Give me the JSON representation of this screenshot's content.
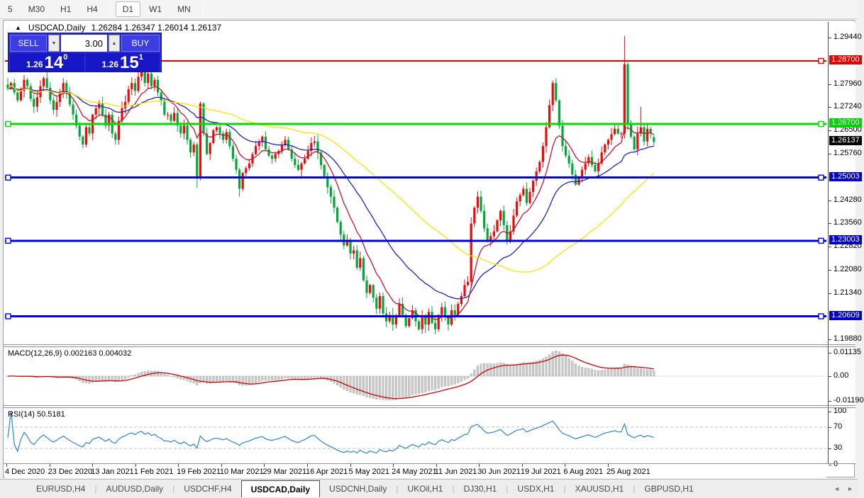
{
  "toolbar": {
    "items": [
      "5",
      "M30",
      "H1",
      "H4",
      "D1",
      "W1",
      "MN"
    ],
    "active": "D1"
  },
  "chart_window": {
    "title": {
      "symbol_period": "USDCAD,Daily",
      "ohlc": "1.26284 1.26347 1.26014 1.26137"
    },
    "trade_panel": {
      "sell_label": "SELL",
      "buy_label": "BUY",
      "volume": "3.00",
      "sell_price": {
        "small": "1.26",
        "big": "14",
        "sup": "0"
      },
      "buy_price": {
        "small": "1.26",
        "big": "15",
        "sup": "1"
      }
    }
  },
  "colors": {
    "bull": "#ee0a0a",
    "bear": "#00a83a",
    "macd_hist": "#c9c9c9",
    "macd_hist_edge": "#ababab",
    "macd_signal": "#d40000",
    "rsi_line": "#2a84d2",
    "rsi_level": "#c0c0c0"
  },
  "chart_data": {
    "type": "candlestick",
    "symbol": "USDCAD",
    "timeframe": "Daily",
    "current_bar": {
      "open": 1.26284,
      "high": 1.26347,
      "low": 1.26014,
      "close": 1.26137
    },
    "candles": {
      "first_open": 1.2795,
      "closes": [
        1.2782,
        1.28,
        1.277,
        1.2745,
        1.2775,
        1.281,
        1.279,
        1.275,
        1.2725,
        1.2755,
        1.279,
        1.2815,
        1.2785,
        1.2745,
        1.2715,
        1.274,
        1.277,
        1.28,
        1.277,
        1.2732,
        1.27,
        1.2665,
        1.263,
        1.2605,
        1.266,
        1.264,
        1.27,
        1.272,
        1.2735,
        1.27,
        1.2665,
        1.27,
        1.264,
        1.262,
        1.268,
        1.272,
        1.274,
        1.278,
        1.28,
        1.2775,
        1.282,
        1.284,
        1.28,
        1.283,
        1.279,
        1.281,
        1.277,
        1.2745,
        1.27,
        1.27,
        1.268,
        1.2705,
        1.2665,
        1.264,
        1.2665,
        1.262,
        1.258,
        1.2605,
        1.25,
        1.2735,
        1.264,
        1.2575,
        1.261,
        1.265,
        1.266,
        1.264,
        1.262,
        1.2645,
        1.26,
        1.256,
        1.2525,
        1.2465,
        1.2515,
        1.253,
        1.2545,
        1.2575,
        1.26,
        1.2615,
        1.263,
        1.259,
        1.257,
        1.256,
        1.2575,
        1.2585,
        1.2605,
        1.262,
        1.259,
        1.256,
        1.254,
        1.2525,
        1.2545,
        1.256,
        1.2585,
        1.261,
        1.2615,
        1.258,
        1.254,
        1.2505,
        1.247,
        1.244,
        1.2405,
        1.236,
        1.232,
        1.2285,
        1.23,
        1.226,
        1.227,
        1.2215,
        1.2245,
        1.2175,
        1.2135,
        1.216,
        1.212,
        1.2085,
        1.2125,
        1.207,
        1.2045,
        1.2065,
        1.2035,
        1.206,
        1.21,
        1.2065,
        1.203,
        1.2055,
        1.208,
        1.2045,
        1.202,
        1.206,
        1.2035,
        1.2075,
        1.204,
        1.202,
        1.2065,
        1.209,
        1.206,
        1.2035,
        1.208,
        1.2065,
        1.21,
        1.2125,
        1.216,
        1.217,
        1.2355,
        1.2405,
        1.244,
        1.2395,
        1.234,
        1.23,
        1.2315,
        1.233,
        1.2365,
        1.2395,
        1.235,
        1.23,
        1.233,
        1.238,
        1.2425,
        1.2445,
        1.2465,
        1.242,
        1.2455,
        1.249,
        1.252,
        1.255,
        1.26,
        1.266,
        1.273,
        1.28,
        1.2745,
        1.2665,
        1.26,
        1.257,
        1.2545,
        1.251,
        1.2478,
        1.25,
        1.2525,
        1.2545,
        1.2565,
        1.254,
        1.252,
        1.2545,
        1.258,
        1.2605,
        1.262,
        1.2638,
        1.2655,
        1.264,
        1.264,
        1.286,
        1.2668,
        1.263,
        1.259,
        1.264,
        1.266,
        1.2615,
        1.2655,
        1.264,
        1.26137
      ],
      "overrides": {
        "41": {
          "h": 1.2862
        },
        "58": {
          "l": 1.2468
        },
        "71": {
          "l": 1.244
        },
        "118": {
          "l": 1.2015
        },
        "128": {
          "l": 1.2008
        },
        "131": {
          "l": 1.2004
        },
        "142": {
          "l": 1.215
        },
        "167": {
          "h": 1.2808
        },
        "189": {
          "h": 1.2949
        },
        "194": {
          "h": 1.2725
        },
        "198": {
          "o": 1.26284,
          "h": 1.26347,
          "l": 1.26014
        }
      }
    },
    "moving_averages": [
      {
        "name": "ma-fast",
        "method": "ema",
        "period": 10,
        "color": "#c81430"
      },
      {
        "name": "ma-medium",
        "method": "ema",
        "period": 30,
        "color": "#2020cc"
      },
      {
        "name": "ma-slow",
        "method": "sma",
        "period": 60,
        "color": "#ffe400"
      }
    ],
    "hlines": [
      {
        "label": "1.28700",
        "price": 1.287,
        "color": "#e60000",
        "width": 2,
        "left_marker": false
      },
      {
        "label": "1.26700",
        "price": 1.267,
        "color": "#00dc00",
        "width": 3,
        "left_marker": true
      },
      {
        "label": "1.25003",
        "price": 1.25003,
        "color": "#0000e6",
        "width": 3,
        "left_marker": true
      },
      {
        "label": "1.23003",
        "price": 1.23003,
        "color": "#0000e6",
        "width": 3,
        "left_marker": true
      },
      {
        "label": "1.20609",
        "price": 1.20609,
        "color": "#0000e6",
        "width": 3,
        "left_marker": true
      }
    ],
    "price_axis": {
      "ticks": [
        {
          "label": "1.29440",
          "value": 1.2944
        },
        {
          "label": "1.27960",
          "value": 1.2796
        },
        {
          "label": "1.27240",
          "value": 1.2724
        },
        {
          "label": "1.26500",
          "value": 1.265
        },
        {
          "label": "1.25760",
          "value": 1.2576
        },
        {
          "label": "1.24280",
          "value": 1.2428
        },
        {
          "label": "1.23560",
          "value": 1.2356
        },
        {
          "label": "1.22820",
          "value": 1.2282
        },
        {
          "label": "1.22080",
          "value": 1.2208
        },
        {
          "label": "1.21340",
          "value": 1.2134
        },
        {
          "label": "1.19880",
          "value": 1.1988
        }
      ],
      "badges": [
        {
          "label": "1.28700",
          "value": 1.287,
          "bg": "#e60000",
          "fg": "#ffffff"
        },
        {
          "label": "1.26700",
          "value": 1.267,
          "bg": "#00d300",
          "fg": "#ffffff"
        },
        {
          "label": "1.26137",
          "value": 1.26137,
          "bg": "#000000",
          "fg": "#ffffff"
        },
        {
          "label": "1.25003",
          "value": 1.25003,
          "bg": "#0000cd",
          "fg": "#ffffff"
        },
        {
          "label": "1.23003",
          "value": 1.23003,
          "bg": "#0000cd",
          "fg": "#ffffff"
        },
        {
          "label": "1.20609",
          "value": 1.20609,
          "bg": "#0000cd",
          "fg": "#ffffff"
        }
      ]
    },
    "x_axis_labels": [
      "4 Dec 2020",
      "23 Dec 2020",
      "13 Jan 2021",
      "1 Feb 2021",
      "19 Feb 2021",
      "10 Mar 2021",
      "29 Mar 2021",
      "16 Apr 2021",
      "5 May 2021",
      "24 May 2021",
      "11 Jun 2021",
      "30 Jun 2021",
      "19 Jul 2021",
      "6 Aug 2021",
      "25 Aug 2021"
    ],
    "macd": {
      "label": "MACD(12,26,9) 0.002163 0.004032",
      "params": [
        12,
        26,
        9
      ],
      "values": [
        0.002163,
        0.004032
      ],
      "scale_ticks": [
        {
          "label": "0.01135",
          "value": 0.01135
        },
        {
          "label": "0.00",
          "value": 0
        },
        {
          "label": "-0.01190",
          "value": -0.0119
        }
      ]
    },
    "rsi": {
      "label": "RSI(14) 50.5181",
      "period": 14,
      "value": 50.5181,
      "levels": [
        70,
        30
      ],
      "scale_ticks": [
        {
          "label": "100",
          "value": 100
        },
        {
          "label": "70",
          "value": 70
        },
        {
          "label": "30",
          "value": 30
        },
        {
          "label": "0",
          "value": 0
        }
      ]
    }
  },
  "tabs": {
    "items": [
      "EURUSD,H4",
      "AUDUSD,Daily",
      "USDCHF,H4",
      "USDCAD,Daily",
      "USDCNH,Daily",
      "UKOil,H1",
      "DJ30,H1",
      "USDX,H1",
      "XAUUSD,H1",
      "GBPUSD,H1"
    ],
    "active_index": 3,
    "scroll_left_icon": "◄",
    "scroll_right_icon": "►"
  }
}
